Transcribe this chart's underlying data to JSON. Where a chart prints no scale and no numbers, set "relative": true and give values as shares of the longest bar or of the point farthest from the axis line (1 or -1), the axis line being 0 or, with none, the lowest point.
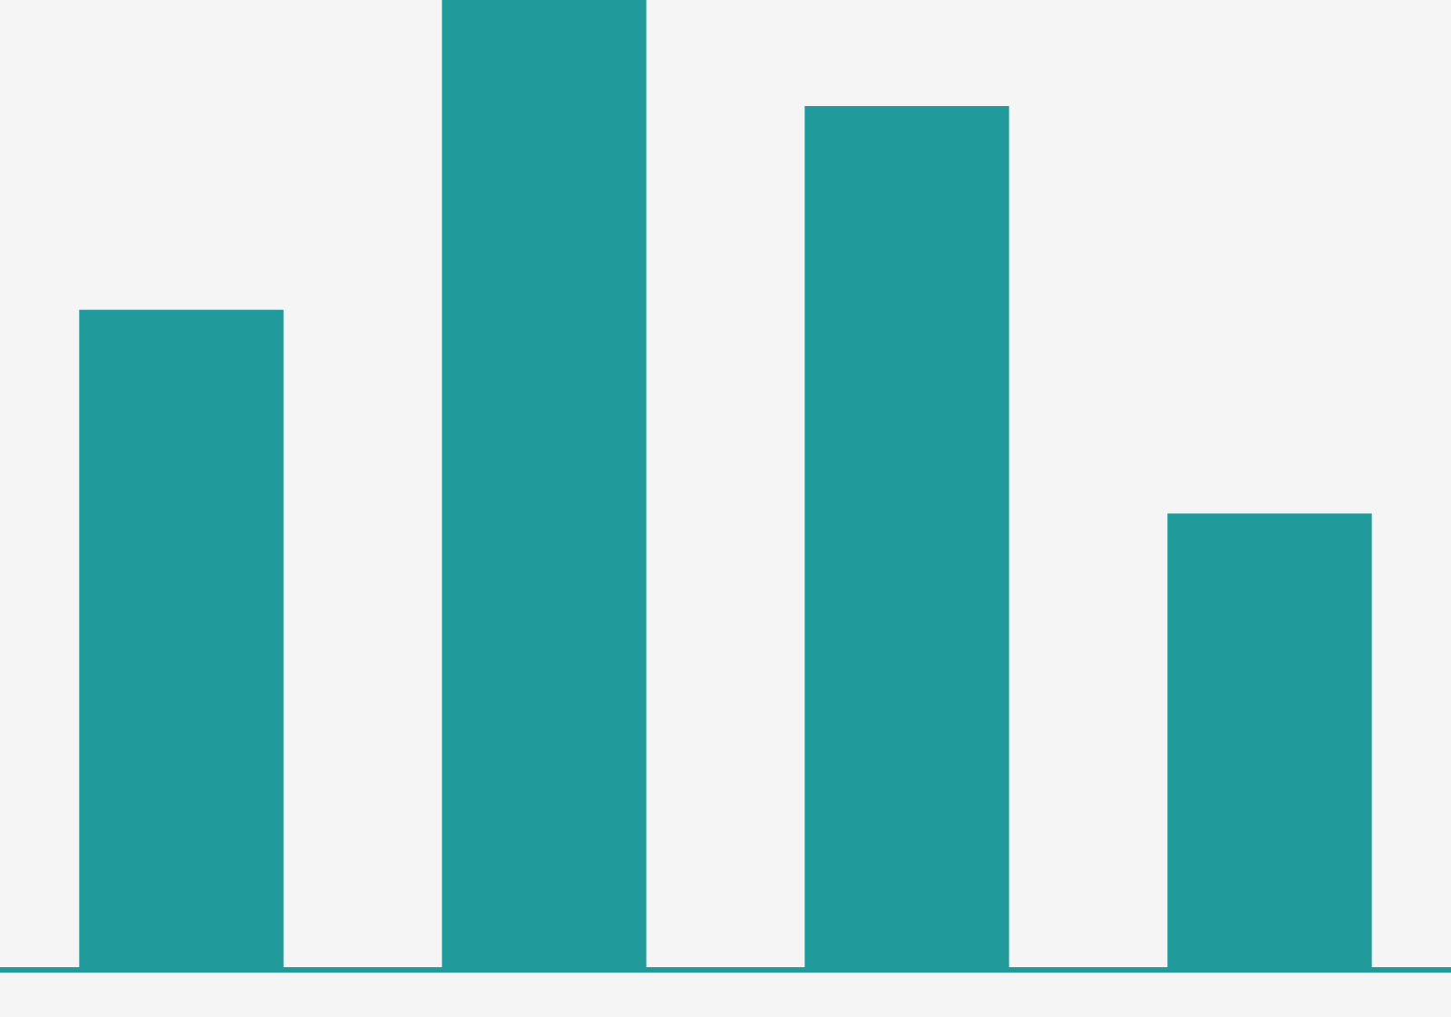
{
  "chart_data": {
    "type": "bar",
    "relative": true,
    "grid": false,
    "legend": false,
    "tick_labels": false,
    "categories": [
      null,
      null,
      null,
      null
    ],
    "series": [
      {
        "color": "#219a9c",
        "values": [
          0.68,
          1,
          0.89,
          0.47
        ]
      }
    ]
  }
}
